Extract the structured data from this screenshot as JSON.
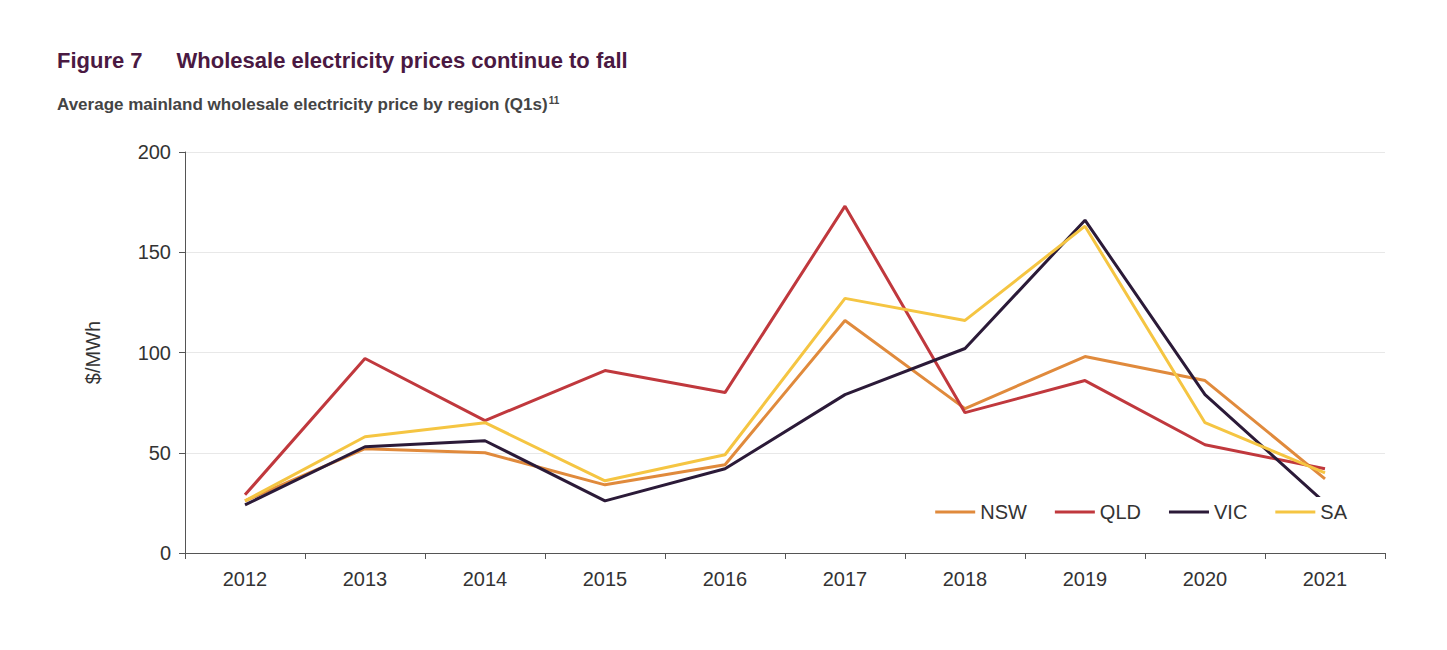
{
  "chart_data": {
    "type": "line",
    "figure_label": "Figure 7",
    "title": "Wholesale electricity prices continue to fall",
    "subtitle": "Average mainland wholesale electricity price by region (Q1s)",
    "subtitle_footnote": "11",
    "y_label": "$/MWh",
    "categories": [
      "2012",
      "2013",
      "2014",
      "2015",
      "2016",
      "2017",
      "2018",
      "2019",
      "2020",
      "2021"
    ],
    "series": [
      {
        "name": "NSW",
        "color": "#e08a3c",
        "values": [
          26,
          52,
          50,
          34,
          44,
          116,
          72,
          98,
          86,
          37
        ]
      },
      {
        "name": "QLD",
        "color": "#c0383d",
        "values": [
          29,
          97,
          66,
          91,
          80,
          173,
          70,
          86,
          54,
          42
        ]
      },
      {
        "name": "VIC",
        "color": "#2b1a38",
        "values": [
          24,
          53,
          56,
          26,
          42,
          79,
          102,
          166,
          79,
          25
        ]
      },
      {
        "name": "SA",
        "color": "#f5c542",
        "values": [
          26,
          58,
          65,
          36,
          49,
          127,
          116,
          163,
          65,
          40
        ]
      }
    ],
    "ylim": [
      0,
      200
    ],
    "yticks": [
      0,
      50,
      100,
      150,
      200
    ],
    "grid": true,
    "legend": "lower right"
  }
}
